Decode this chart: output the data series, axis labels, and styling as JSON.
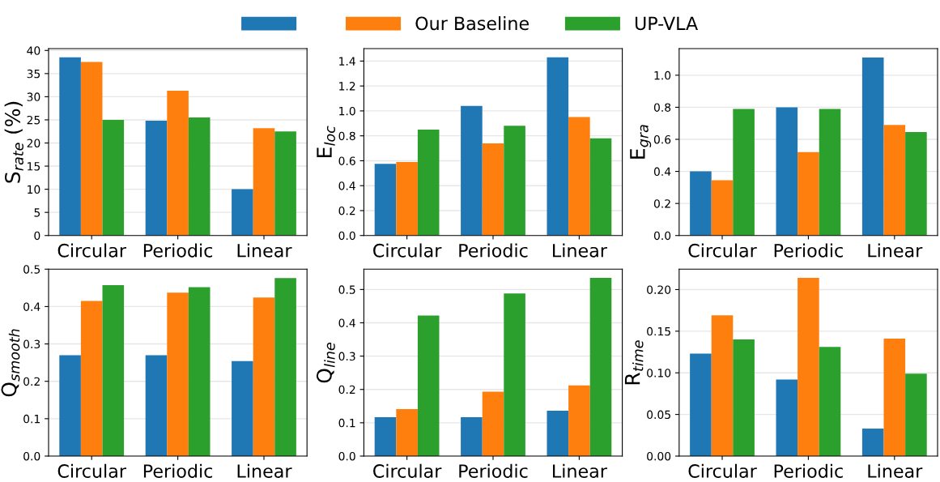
{
  "chart_data": [
    {
      "type": "bar",
      "ylabel": "S$_{rate}$ (%)",
      "categories": [
        "Circular",
        "Periodic",
        "Linear"
      ],
      "legend": "top",
      "grid": "y",
      "ylim": [
        0,
        40.4
      ],
      "yticks": [
        0,
        5,
        10,
        15,
        20,
        25,
        30,
        35,
        40
      ],
      "series": [
        {
          "color": "#1f77b4",
          "values": [
            38.5,
            24.8,
            10.0
          ]
        },
        {
          "name": "Our Baseline",
          "color": "#ff7f0e",
          "values": [
            37.5,
            31.3,
            23.2
          ]
        },
        {
          "name": "UP-VLA",
          "color": "#2ca02c",
          "values": [
            25.0,
            25.5,
            22.5
          ]
        }
      ]
    },
    {
      "type": "bar",
      "ylabel": "E$_{loc}$",
      "categories": [
        "Circular",
        "Periodic",
        "Linear"
      ],
      "grid": "y",
      "ylim": [
        0,
        1.5
      ],
      "yticks": [
        {
          "value": 0,
          "label": "0.0"
        },
        0.2,
        0.4,
        0.6,
        0.8,
        {
          "value": 1,
          "label": "1.0"
        },
        1.2,
        1.4
      ],
      "series": [
        {
          "color": "#1f77b4",
          "values": [
            0.575,
            1.04,
            1.43
          ]
        },
        {
          "color": "#ff7f0e",
          "values": [
            0.59,
            0.74,
            0.95
          ]
        },
        {
          "color": "#2ca02c",
          "values": [
            0.85,
            0.88,
            0.78
          ]
        }
      ]
    },
    {
      "type": "bar",
      "ylabel": "E$_{gra}$",
      "categories": [
        "Circular",
        "Periodic",
        "Linear"
      ],
      "grid": "y",
      "ylim": [
        0,
        1.166
      ],
      "yticks": [
        {
          "value": 0,
          "label": "0.0"
        },
        0.2,
        0.4,
        0.6,
        0.8,
        {
          "value": 1,
          "label": "1.0"
        }
      ],
      "series": [
        {
          "color": "#1f77b4",
          "values": [
            0.4,
            0.8,
            1.11
          ]
        },
        {
          "color": "#ff7f0e",
          "values": [
            0.345,
            0.52,
            0.69
          ]
        },
        {
          "color": "#2ca02c",
          "values": [
            0.79,
            0.79,
            0.645
          ]
        }
      ]
    },
    {
      "type": "bar",
      "ylabel": "Q$_{smooth}$",
      "categories": [
        "Circular",
        "Periodic",
        "Linear"
      ],
      "grid": "y",
      "ylim": [
        0,
        0.5
      ],
      "yticks": [
        {
          "value": 0,
          "label": "0.0"
        },
        0.1,
        0.2,
        0.3,
        0.4,
        0.5
      ],
      "series": [
        {
          "color": "#1f77b4",
          "values": [
            0.27,
            0.27,
            0.254
          ]
        },
        {
          "color": "#ff7f0e",
          "values": [
            0.415,
            0.437,
            0.424
          ]
        },
        {
          "color": "#2ca02c",
          "values": [
            0.457,
            0.452,
            0.476
          ]
        }
      ]
    },
    {
      "type": "bar",
      "ylabel": "Q$_{line}$",
      "categories": [
        "Circular",
        "Periodic",
        "Linear"
      ],
      "grid": "y",
      "ylim": [
        0,
        0.561
      ],
      "yticks": [
        {
          "value": 0,
          "label": "0.0"
        },
        0.1,
        0.2,
        0.3,
        0.4,
        0.5
      ],
      "series": [
        {
          "color": "#1f77b4",
          "values": [
            0.117,
            0.117,
            0.136
          ]
        },
        {
          "color": "#ff7f0e",
          "values": [
            0.141,
            0.193,
            0.212
          ]
        },
        {
          "color": "#2ca02c",
          "values": [
            0.422,
            0.488,
            0.535
          ]
        }
      ]
    },
    {
      "type": "bar",
      "ylabel": "R$_{time}$",
      "categories": [
        "Circular",
        "Periodic",
        "Linear"
      ],
      "grid": "y",
      "ylim": [
        0,
        0.2245
      ],
      "yticks": [
        {
          "value": 0,
          "label": "0.00"
        },
        0.05,
        {
          "value": 0.1,
          "label": "0.10"
        },
        0.15,
        {
          "value": 0.2,
          "label": "0.20"
        }
      ],
      "series": [
        {
          "color": "#1f77b4",
          "values": [
            0.123,
            0.092,
            0.033
          ]
        },
        {
          "color": "#ff7f0e",
          "values": [
            0.169,
            0.214,
            0.141
          ]
        },
        {
          "color": "#2ca02c",
          "values": [
            0.14,
            0.131,
            0.099
          ]
        }
      ]
    }
  ]
}
